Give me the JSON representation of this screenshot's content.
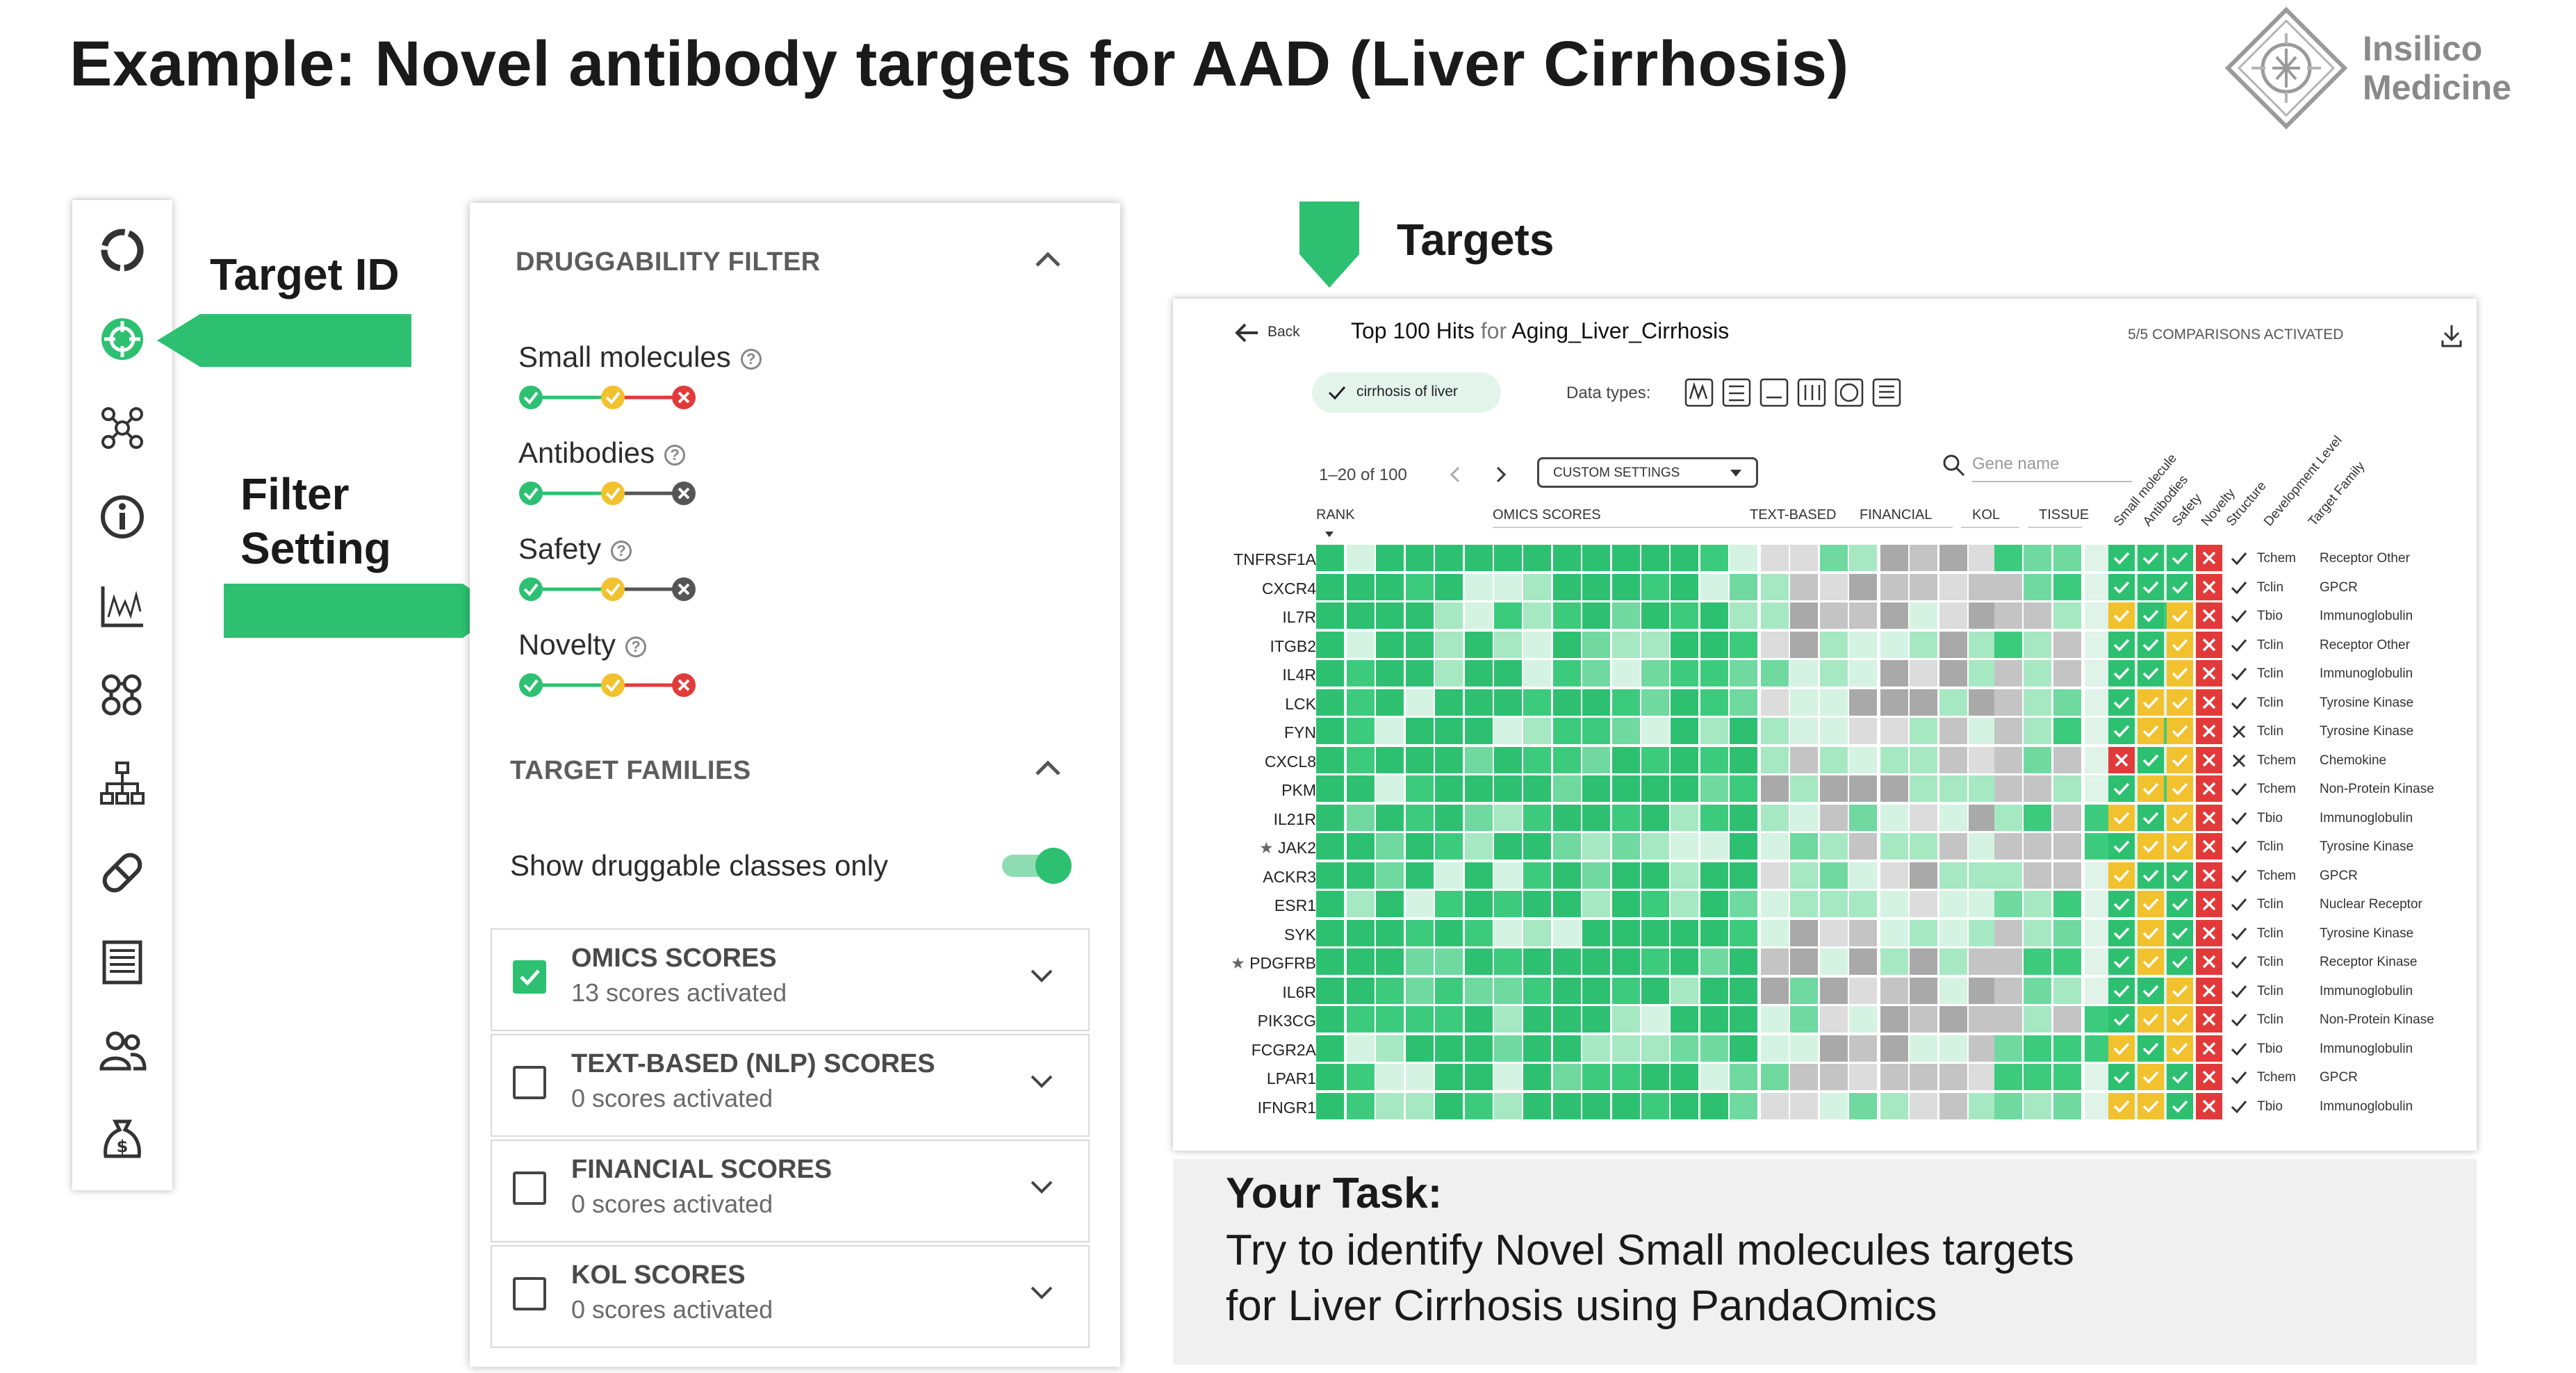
{
  "title": "Example: Novel antibody targets for AAD (Liver Cirrhosis)",
  "logo": {
    "line1": "Insilico",
    "line2": "Medicine"
  },
  "sidebar": {
    "icons": [
      "circle-ring-icon",
      "target-crosshair-icon",
      "network-icon",
      "info-icon",
      "chart-icon",
      "molecules-icon",
      "hierarchy-icon",
      "pill-icon",
      "document-icon",
      "users-icon",
      "money-bag-icon"
    ]
  },
  "callouts": {
    "target_id": "Target ID",
    "filter_line1": "Filter",
    "filter_line2": "Setting",
    "targets": "Targets"
  },
  "filter_panel": {
    "druggability_header": "DRUGGABILITY FILTER",
    "items": [
      {
        "label": "Small molecules",
        "dots": [
          "green",
          "yellow",
          "red"
        ]
      },
      {
        "label": "Antibodies",
        "dots": [
          "green",
          "yellow",
          "dark"
        ]
      },
      {
        "label": "Safety",
        "dots": [
          "green",
          "yellow",
          "dark"
        ]
      },
      {
        "label": "Novelty",
        "dots": [
          "green",
          "yellow",
          "red"
        ]
      }
    ],
    "families_header": "TARGET FAMILIES",
    "toggle_label": "Show druggable classes only",
    "toggle_on": true,
    "scores": [
      {
        "title": "OMICS SCORES",
        "sub": "13 scores activated",
        "checked": true
      },
      {
        "title": "TEXT-BASED (NLP) SCORES",
        "sub": "0 scores activated",
        "checked": false
      },
      {
        "title": "FINANCIAL SCORES",
        "sub": "0 scores activated",
        "checked": false
      },
      {
        "title": "KOL SCORES",
        "sub": "0 scores activated",
        "checked": false
      }
    ]
  },
  "targets_panel": {
    "back": "Back",
    "heading_bold": "Top 100 Hits",
    "heading_for": "for",
    "heading_name": "Aging_Liver_Cirrhosis",
    "comparisons": "5/5 COMPARISONS ACTIVATED",
    "chip": "cirrhosis of liver",
    "data_types": "Data types:",
    "pagination": "1–20 of 100",
    "custom_settings": "CUSTOM SETTINGS",
    "search_placeholder": "Gene name",
    "col_groups": [
      "RANK",
      "OMICS SCORES",
      "TEXT-BASED",
      "FINANCIAL",
      "KOL",
      "TISSUE"
    ],
    "rotated_headers": [
      "Small molecule",
      "Antibodies",
      "Safety",
      "Novelty",
      "Structure",
      "Development Level",
      "Target Family"
    ],
    "rows": [
      {
        "gene": "TNFRSF1A",
        "star": false,
        "flags": [
          "G",
          "G",
          "G",
          "R"
        ],
        "struct": "check",
        "level": "Tchem",
        "family": "Receptor Other"
      },
      {
        "gene": "CXCR4",
        "star": false,
        "flags": [
          "G",
          "G",
          "G",
          "R"
        ],
        "struct": "check",
        "level": "Tclin",
        "family": "GPCR"
      },
      {
        "gene": "IL7R",
        "star": false,
        "flags": [
          "Y",
          "G",
          "Y",
          "R"
        ],
        "struct": "check",
        "level": "Tbio",
        "family": "Immunoglobulin"
      },
      {
        "gene": "ITGB2",
        "star": false,
        "flags": [
          "G",
          "G",
          "Y",
          "R"
        ],
        "struct": "check",
        "level": "Tclin",
        "family": "Receptor Other"
      },
      {
        "gene": "IL4R",
        "star": false,
        "flags": [
          "G",
          "G",
          "Y",
          "R"
        ],
        "struct": "check",
        "level": "Tclin",
        "family": "Immunoglobulin"
      },
      {
        "gene": "LCK",
        "star": false,
        "flags": [
          "G",
          "Y",
          "Y",
          "R"
        ],
        "struct": "check",
        "level": "Tclin",
        "family": "Tyrosine Kinase"
      },
      {
        "gene": "FYN",
        "star": false,
        "flags": [
          "G",
          "Y",
          "Y",
          "R"
        ],
        "struct": "cross",
        "level": "Tclin",
        "family": "Tyrosine Kinase"
      },
      {
        "gene": "CXCL8",
        "star": false,
        "flags": [
          "R",
          "G",
          "Y",
          "R"
        ],
        "struct": "cross",
        "level": "Tchem",
        "family": "Chemokine"
      },
      {
        "gene": "PKM",
        "star": false,
        "flags": [
          "G",
          "Y",
          "Y",
          "R"
        ],
        "struct": "check",
        "level": "Tchem",
        "family": "Non-Protein Kinase"
      },
      {
        "gene": "IL21R",
        "star": false,
        "flags": [
          "Y",
          "G",
          "Y",
          "R"
        ],
        "struct": "check",
        "level": "Tbio",
        "family": "Immunoglobulin"
      },
      {
        "gene": "JAK2",
        "star": true,
        "flags": [
          "G",
          "Y",
          "Y",
          "R"
        ],
        "struct": "check",
        "level": "Tclin",
        "family": "Tyrosine Kinase"
      },
      {
        "gene": "ACKR3",
        "star": false,
        "flags": [
          "Y",
          "G",
          "G",
          "R"
        ],
        "struct": "check",
        "level": "Tchem",
        "family": "GPCR"
      },
      {
        "gene": "ESR1",
        "star": false,
        "flags": [
          "G",
          "Y",
          "G",
          "R"
        ],
        "struct": "check",
        "level": "Tclin",
        "family": "Nuclear Receptor"
      },
      {
        "gene": "SYK",
        "star": false,
        "flags": [
          "G",
          "Y",
          "G",
          "R"
        ],
        "struct": "check",
        "level": "Tclin",
        "family": "Tyrosine Kinase"
      },
      {
        "gene": "PDGFRB",
        "star": true,
        "flags": [
          "G",
          "Y",
          "G",
          "R"
        ],
        "struct": "check",
        "level": "Tclin",
        "family": "Receptor Kinase"
      },
      {
        "gene": "IL6R",
        "star": false,
        "flags": [
          "G",
          "G",
          "Y",
          "R"
        ],
        "struct": "check",
        "level": "Tclin",
        "family": "Immunoglobulin"
      },
      {
        "gene": "PIK3CG",
        "star": false,
        "flags": [
          "G",
          "Y",
          "Y",
          "R"
        ],
        "struct": "check",
        "level": "Tclin",
        "family": "Non-Protein Kinase"
      },
      {
        "gene": "FCGR2A",
        "star": false,
        "flags": [
          "Y",
          "G",
          "Y",
          "R"
        ],
        "struct": "check",
        "level": "Tbio",
        "family": "Immunoglobulin"
      },
      {
        "gene": "LPAR1",
        "star": false,
        "flags": [
          "G",
          "Y",
          "G",
          "R"
        ],
        "struct": "check",
        "level": "Tchem",
        "family": "GPCR"
      },
      {
        "gene": "IFNGR1",
        "star": false,
        "flags": [
          "Y",
          "Y",
          "G",
          "R"
        ],
        "struct": "check",
        "level": "Tbio",
        "family": "Immunoglobulin"
      }
    ]
  },
  "task": {
    "title": "Your Task:",
    "line1": "Try to identify Novel Small molecules targets",
    "line2": "for Liver Cirrhosis using PandaOmics"
  },
  "colors": {
    "green": "#2dc071",
    "yellow": "#f2c12e",
    "red": "#e23a3a"
  }
}
